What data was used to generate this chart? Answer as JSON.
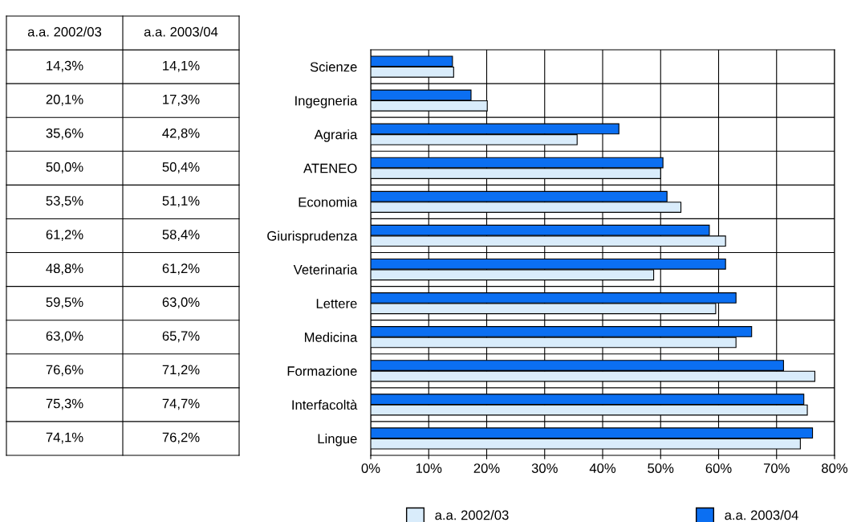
{
  "chart_data": {
    "type": "bar",
    "orientation": "horizontal",
    "categories": [
      "Scienze",
      "Ingegneria",
      "Agraria",
      "ATENEO",
      "Economia",
      "Giurisprudenza",
      "Veterinaria",
      "Lettere",
      "Medicina",
      "Formazione",
      "Interfacoltà",
      "Lingue"
    ],
    "series": [
      {
        "name": "a.a. 2002/03",
        "color": "#d9ecfb",
        "values": [
          14.3,
          20.1,
          35.6,
          50.0,
          53.5,
          61.2,
          48.8,
          59.5,
          63.0,
          76.6,
          75.3,
          74.1
        ],
        "value_labels": [
          "14,3%",
          "20,1%",
          "35,6%",
          "50,0%",
          "53,5%",
          "61,2%",
          "48,8%",
          "59,5%",
          "63,0%",
          "76,6%",
          "75,3%",
          "74,1%"
        ]
      },
      {
        "name": "a.a. 2003/04",
        "color": "#0b6ff2",
        "values": [
          14.1,
          17.3,
          42.8,
          50.4,
          51.1,
          58.4,
          61.2,
          63.0,
          65.7,
          71.2,
          74.7,
          76.2
        ],
        "value_labels": [
          "14,1%",
          "17,3%",
          "42,8%",
          "50,4%",
          "51,1%",
          "58,4%",
          "61,2%",
          "63,0%",
          "65,7%",
          "71,2%",
          "74,7%",
          "76,2%"
        ]
      }
    ],
    "xlim": [
      0,
      80
    ],
    "xticks": [
      {
        "value": 0,
        "label": "0%"
      },
      {
        "value": 10,
        "label": "10%"
      },
      {
        "value": 20,
        "label": "20%"
      },
      {
        "value": 30,
        "label": "30%"
      },
      {
        "value": 40,
        "label": "40%"
      },
      {
        "value": 50,
        "label": "50%"
      },
      {
        "value": 60,
        "label": "60%"
      },
      {
        "value": 70,
        "label": "70%"
      },
      {
        "value": 80,
        "label": "80%"
      }
    ],
    "grid": true,
    "legend": "bottom"
  }
}
